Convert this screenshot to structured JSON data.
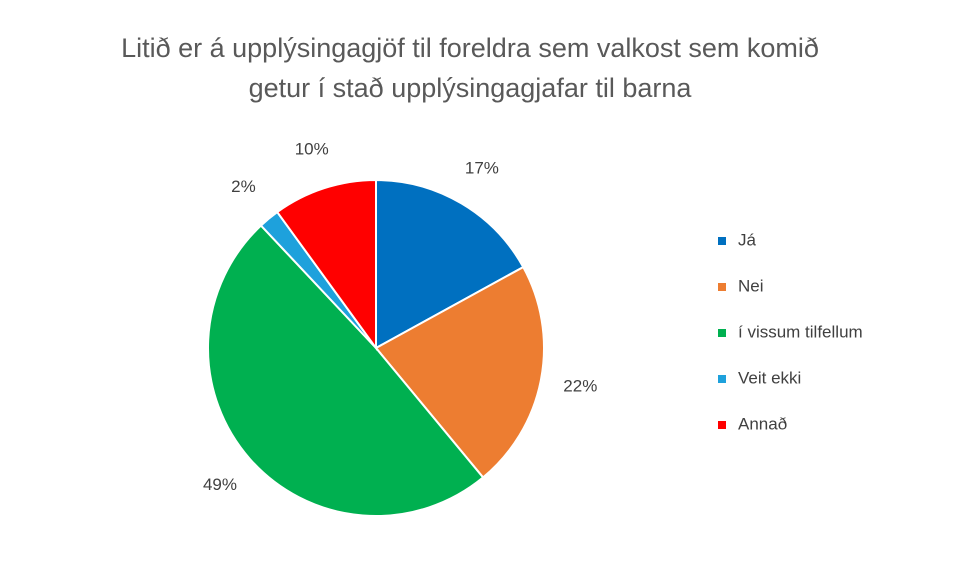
{
  "chart_data": {
    "type": "pie",
    "title": "Litið er á upplýsingagjöf til foreldra sem valkost sem komið getur í stað upplýsingagjafar til barna",
    "categories": [
      "Já",
      "Nei",
      "í vissum tilfellum",
      "Veit ekki",
      "Annað"
    ],
    "values": [
      17,
      22,
      49,
      2,
      10
    ],
    "value_labels": [
      "17%",
      "22%",
      "49%",
      "2%",
      "10%"
    ],
    "colors": [
      "#0070c0",
      "#ed7d31",
      "#00b050",
      "#1ea1dc",
      "#ff0000"
    ],
    "legend": "right"
  }
}
